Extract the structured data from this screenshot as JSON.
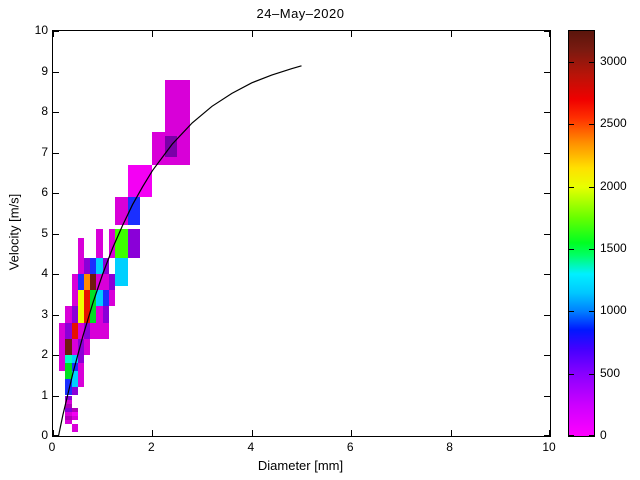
{
  "title": "24–May–2020",
  "chart_data": {
    "type": "heatmap",
    "title": "24–May–2020",
    "xlabel": "Diameter [mm]",
    "ylabel": "Velocity [m/s]",
    "xlim": [
      0,
      10
    ],
    "ylim": [
      0,
      10
    ],
    "x_ticks": [
      0,
      2,
      4,
      6,
      8,
      10
    ],
    "y_ticks": [
      0,
      1,
      2,
      3,
      4,
      5,
      6,
      7,
      8,
      9,
      10
    ],
    "grid": false,
    "description": "Disdrometer drop counts binned by drop diameter and fall velocity, with theoretical terminal-velocity curve",
    "colorbar": {
      "position": "right",
      "vmin": 0,
      "vmax": 3250,
      "ticks": [
        0,
        500,
        1000,
        1500,
        2000,
        2500,
        3000
      ],
      "gradient_stops": [
        [
          0,
          "#FF00FF"
        ],
        [
          250,
          "#CC00FF"
        ],
        [
          500,
          "#8800FF"
        ],
        [
          700,
          "#4400FF"
        ],
        [
          850,
          "#0018FF"
        ],
        [
          1000,
          "#0080FF"
        ],
        [
          1150,
          "#00C8FF"
        ],
        [
          1300,
          "#00F0FF"
        ],
        [
          1450,
          "#00FF66"
        ],
        [
          1550,
          "#00FF22"
        ],
        [
          1750,
          "#66FF00"
        ],
        [
          2000,
          "#E8FF00"
        ],
        [
          2150,
          "#FFE000"
        ],
        [
          2350,
          "#FF9000"
        ],
        [
          2550,
          "#FF3000"
        ],
        [
          2700,
          "#F00000"
        ],
        [
          2900,
          "#B81408"
        ],
        [
          3100,
          "#7A1A10"
        ],
        [
          3250,
          "#5A150C"
        ]
      ]
    },
    "palette": {
      "magenta": {
        "hex": "#D800D8",
        "value": 100
      },
      "magenta2": {
        "hex": "#F400F4",
        "value": 60
      },
      "darkmagenta": {
        "hex": "#B000B8",
        "value": 240
      },
      "purple": {
        "hex": "#8A00D8",
        "value": 430
      },
      "darkpurple": {
        "hex": "#7A00A8",
        "value": 560
      },
      "blue": {
        "hex": "#1A2FFF",
        "value": 820
      },
      "cyan": {
        "hex": "#00D0FF",
        "value": 1150
      },
      "teal": {
        "hex": "#00FFC0",
        "value": 1360
      },
      "green": {
        "hex": "#00E022",
        "value": 1560
      },
      "brightgreen": {
        "hex": "#3CFF00",
        "value": 1720
      },
      "yellow": {
        "hex": "#F0FF00",
        "value": 2060
      },
      "orange": {
        "hex": "#FF8A00",
        "value": 2330
      },
      "red": {
        "hex": "#E81000",
        "value": 2620
      },
      "maroon": {
        "hex": "#701A10",
        "value": 3080
      }
    },
    "cells": [
      [
        0.375,
        0.5,
        0.1,
        0.3,
        "magenta"
      ],
      [
        0.25,
        0.375,
        0.3,
        0.4,
        "magenta"
      ],
      [
        0.25,
        0.375,
        0.4,
        0.5,
        "darkmagenta"
      ],
      [
        0.375,
        0.5,
        0.4,
        0.5,
        "magenta"
      ],
      [
        0.25,
        0.375,
        0.5,
        0.6,
        "magenta"
      ],
      [
        0.375,
        0.5,
        0.5,
        0.6,
        "magenta2"
      ],
      [
        0.25,
        0.375,
        0.6,
        0.7,
        "purple"
      ],
      [
        0.375,
        0.5,
        0.6,
        0.7,
        "darkmagenta"
      ],
      [
        0.25,
        0.375,
        0.7,
        0.8,
        "darkmagenta"
      ],
      [
        0.25,
        0.375,
        0.8,
        0.9,
        "magenta"
      ],
      [
        0.25,
        0.375,
        0.9,
        1.0,
        "purple"
      ],
      [
        0.25,
        0.375,
        1.0,
        1.2,
        "blue"
      ],
      [
        0.375,
        0.5,
        1.0,
        1.2,
        "purple"
      ],
      [
        0.25,
        0.375,
        1.2,
        1.4,
        "blue"
      ],
      [
        0.375,
        0.5,
        1.2,
        1.4,
        "cyan"
      ],
      [
        0.5,
        0.625,
        1.2,
        1.4,
        "magenta"
      ],
      [
        0.25,
        0.375,
        1.4,
        1.6,
        "green"
      ],
      [
        0.375,
        0.5,
        1.4,
        1.6,
        "cyan"
      ],
      [
        0.5,
        0.625,
        1.4,
        1.6,
        "magenta"
      ],
      [
        0.125,
        0.25,
        1.6,
        1.8,
        "magenta"
      ],
      [
        0.25,
        0.375,
        1.6,
        1.8,
        "green"
      ],
      [
        0.375,
        0.5,
        1.6,
        1.8,
        "blue"
      ],
      [
        0.5,
        0.625,
        1.6,
        1.8,
        "magenta"
      ],
      [
        0.125,
        0.25,
        1.8,
        2.0,
        "magenta"
      ],
      [
        0.25,
        0.375,
        1.8,
        2.0,
        "teal"
      ],
      [
        0.375,
        0.5,
        1.8,
        2.0,
        "cyan"
      ],
      [
        0.5,
        0.625,
        1.8,
        2.0,
        "purple"
      ],
      [
        0.125,
        0.25,
        2.0,
        2.4,
        "magenta"
      ],
      [
        0.25,
        0.375,
        2.0,
        2.4,
        "maroon"
      ],
      [
        0.375,
        0.5,
        2.0,
        2.4,
        "magenta"
      ],
      [
        0.5,
        0.625,
        2.0,
        2.4,
        "purple"
      ],
      [
        0.625,
        0.75,
        2.0,
        2.4,
        "magenta"
      ],
      [
        0.125,
        0.25,
        2.4,
        2.8,
        "magenta"
      ],
      [
        0.25,
        0.375,
        2.4,
        2.8,
        "purple"
      ],
      [
        0.375,
        0.5,
        2.4,
        2.8,
        "red"
      ],
      [
        0.5,
        0.625,
        2.4,
        2.8,
        "magenta"
      ],
      [
        0.625,
        0.75,
        2.4,
        2.8,
        "purple"
      ],
      [
        0.75,
        0.875,
        2.4,
        2.8,
        "magenta"
      ],
      [
        0.875,
        1.0,
        2.4,
        2.8,
        "magenta"
      ],
      [
        1.0,
        1.125,
        2.4,
        2.8,
        "magenta"
      ],
      [
        0.25,
        0.375,
        2.8,
        3.2,
        "magenta"
      ],
      [
        0.375,
        0.5,
        2.8,
        3.2,
        "purple"
      ],
      [
        0.5,
        0.625,
        2.8,
        3.2,
        "yellow"
      ],
      [
        0.625,
        0.75,
        2.8,
        3.2,
        "red"
      ],
      [
        0.75,
        0.875,
        2.8,
        3.2,
        "green"
      ],
      [
        0.875,
        1.0,
        2.8,
        3.2,
        "magenta"
      ],
      [
        1.0,
        1.125,
        2.8,
        3.2,
        "purple"
      ],
      [
        0.375,
        0.5,
        3.2,
        3.6,
        "magenta"
      ],
      [
        0.5,
        0.625,
        3.2,
        3.6,
        "yellow"
      ],
      [
        0.625,
        0.75,
        3.2,
        3.6,
        "red"
      ],
      [
        0.75,
        0.875,
        3.2,
        3.6,
        "green"
      ],
      [
        0.875,
        1.0,
        3.2,
        3.6,
        "cyan"
      ],
      [
        1.0,
        1.125,
        3.2,
        3.6,
        "blue"
      ],
      [
        1.125,
        1.25,
        3.2,
        3.6,
        "magenta"
      ],
      [
        0.375,
        0.5,
        3.6,
        4.0,
        "magenta"
      ],
      [
        0.5,
        0.625,
        3.6,
        4.0,
        "blue"
      ],
      [
        0.625,
        0.75,
        3.6,
        4.0,
        "orange"
      ],
      [
        0.75,
        0.875,
        3.6,
        4.0,
        "maroon"
      ],
      [
        0.875,
        1.0,
        3.6,
        4.0,
        "magenta"
      ],
      [
        1.0,
        1.125,
        3.6,
        4.0,
        "magenta"
      ],
      [
        1.125,
        1.25,
        3.6,
        4.0,
        "purple"
      ],
      [
        0.5,
        0.625,
        4.0,
        4.9,
        "magenta"
      ],
      [
        0.625,
        0.75,
        4.0,
        4.4,
        "purple"
      ],
      [
        0.75,
        0.875,
        4.0,
        4.4,
        "blue"
      ],
      [
        0.875,
        1.0,
        4.0,
        4.4,
        "cyan"
      ],
      [
        1.0,
        1.125,
        4.0,
        4.4,
        "purple"
      ],
      [
        1.25,
        1.5,
        3.7,
        4.4,
        "cyan"
      ],
      [
        0.875,
        1.0,
        4.4,
        5.1,
        "magenta"
      ],
      [
        1.125,
        1.25,
        4.4,
        5.1,
        "magenta"
      ],
      [
        1.25,
        1.5,
        4.4,
        5.1,
        "brightgreen"
      ],
      [
        1.5,
        1.75,
        4.4,
        5.1,
        "purple"
      ],
      [
        1.25,
        1.5,
        5.2,
        5.9,
        "magenta"
      ],
      [
        1.5,
        1.75,
        5.2,
        5.9,
        "blue"
      ],
      [
        1.5,
        1.75,
        5.9,
        6.7,
        "magenta2"
      ],
      [
        1.75,
        2.0,
        5.9,
        6.7,
        "magenta2"
      ],
      [
        2.0,
        2.25,
        6.7,
        7.5,
        "magenta"
      ],
      [
        2.25,
        2.75,
        6.7,
        8.8,
        "magenta"
      ],
      [
        2.25,
        2.5,
        6.9,
        7.4,
        "darkpurple"
      ]
    ],
    "curve": {
      "label": "terminal-velocity curve",
      "color": "#000000",
      "points": [
        [
          0.11,
          0
        ],
        [
          0.2,
          0.52
        ],
        [
          0.4,
          1.55
        ],
        [
          0.6,
          2.46
        ],
        [
          0.8,
          3.28
        ],
        [
          1.0,
          4.0
        ],
        [
          1.2,
          4.64
        ],
        [
          1.4,
          5.2
        ],
        [
          1.6,
          5.71
        ],
        [
          1.8,
          6.15
        ],
        [
          2.0,
          6.55
        ],
        [
          2.4,
          7.21
        ],
        [
          2.8,
          7.73
        ],
        [
          3.2,
          8.14
        ],
        [
          3.6,
          8.46
        ],
        [
          4.0,
          8.72
        ],
        [
          4.4,
          8.91
        ],
        [
          4.8,
          9.07
        ],
        [
          5.0,
          9.14
        ]
      ]
    }
  }
}
